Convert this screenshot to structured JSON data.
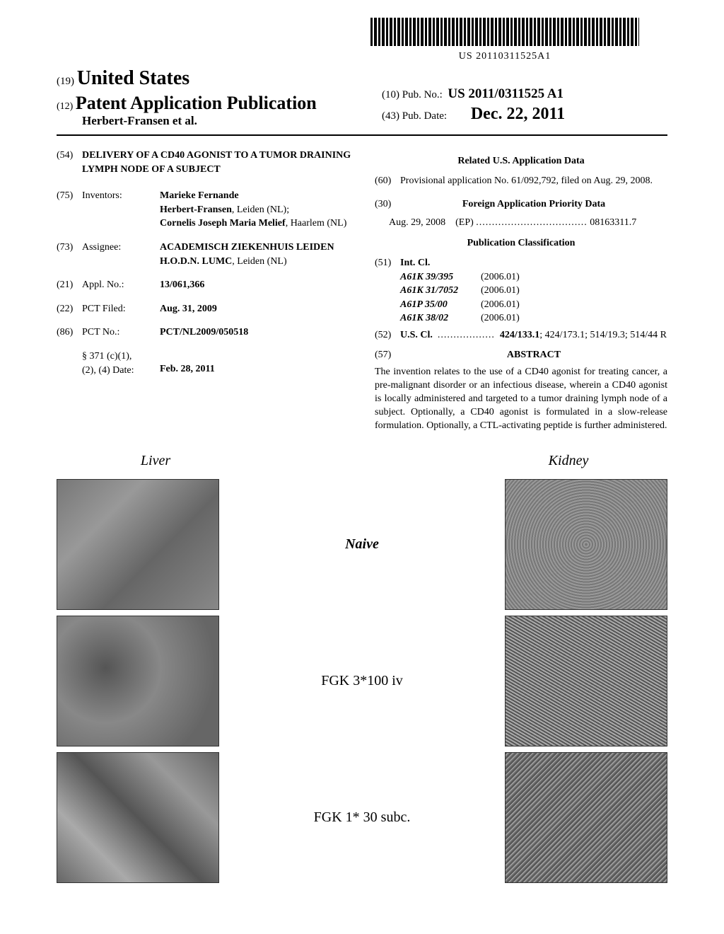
{
  "barcode_number": "US 20110311525A1",
  "header": {
    "country_prefix": "(19)",
    "country": "United States",
    "pub_type_prefix": "(12)",
    "pub_type": "Patent Application Publication",
    "authors": "Herbert-Fransen et al.",
    "pub_no_prefix": "(10)",
    "pub_no_label": "Pub. No.:",
    "pub_no": "US 2011/0311525 A1",
    "pub_date_prefix": "(43)",
    "pub_date_label": "Pub. Date:",
    "pub_date": "Dec. 22, 2011"
  },
  "left": {
    "title_num": "(54)",
    "title": "DELIVERY OF A CD40 AGONIST TO A TUMOR DRAINING LYMPH NODE OF A SUBJECT",
    "inventors_num": "(75)",
    "inventors_label": "Inventors:",
    "inventors_value_1": "Marieke Fernande",
    "inventors_value_2": "Herbert-Fransen",
    "inventors_value_2_loc": ", Leiden (NL);",
    "inventors_value_3": "Cornelis Joseph Maria Melief",
    "inventors_value_3_loc": ", Haarlem (NL)",
    "assignee_num": "(73)",
    "assignee_label": "Assignee:",
    "assignee_value_1": "ACADEMISCH ZIEKENHUIS LEIDEN H.O.D.N. LUMC",
    "assignee_value_2": ", Leiden (NL)",
    "appl_num": "(21)",
    "appl_label": "Appl. No.:",
    "appl_value": "13/061,366",
    "pct_filed_num": "(22)",
    "pct_filed_label": "PCT Filed:",
    "pct_filed_value": "Aug. 31, 2009",
    "pct_no_num": "(86)",
    "pct_no_label": "PCT No.:",
    "pct_no_value": "PCT/NL2009/050518",
    "s371_label": "§ 371 (c)(1),",
    "s371_label2": "(2), (4) Date:",
    "s371_value": "Feb. 28, 2011"
  },
  "right": {
    "related_heading": "Related U.S. Application Data",
    "prov_num": "(60)",
    "prov_text": "Provisional application No. 61/092,792, filed on Aug. 29, 2008.",
    "foreign_num": "(30)",
    "foreign_heading": "Foreign Application Priority Data",
    "foreign_date": "Aug. 29, 2008",
    "foreign_country": "(EP)",
    "foreign_dots": "...................................",
    "foreign_app": "08163311.7",
    "pubclass_heading": "Publication Classification",
    "intcl_num": "(51)",
    "intcl_label": "Int. Cl.",
    "intcl": [
      {
        "code": "A61K 39/395",
        "date": "(2006.01)"
      },
      {
        "code": "A61K 31/7052",
        "date": "(2006.01)"
      },
      {
        "code": "A61P 35/00",
        "date": "(2006.01)"
      },
      {
        "code": "A61K 38/02",
        "date": "(2006.01)"
      }
    ],
    "uscl_num": "(52)",
    "uscl_label": "U.S. Cl.",
    "uscl_dots": "..................",
    "uscl_value_bold": "424/133.1",
    "uscl_value_rest": "; 424/173.1; 514/19.3; 514/44 R",
    "abstract_num": "(57)",
    "abstract_heading": "ABSTRACT",
    "abstract_text": "The invention relates to the use of a CD40 agonist for treating cancer, a pre-malignant disorder or an infectious disease, wherein a CD40 agonist is locally administered and targeted to a tumor draining lymph node of a subject. Optionally, a CD40 agonist is formulated in a slow-release formulation. Optionally, a CTL-activating peptide is further administered."
  },
  "figures": {
    "col_left": "Liver",
    "col_right": "Kidney",
    "rows": [
      {
        "label": "Naive",
        "style": "italic-bold"
      },
      {
        "label": "FGK 3*100 iv",
        "style": ""
      },
      {
        "label": "FGK 1* 30 subc.",
        "style": ""
      }
    ]
  }
}
